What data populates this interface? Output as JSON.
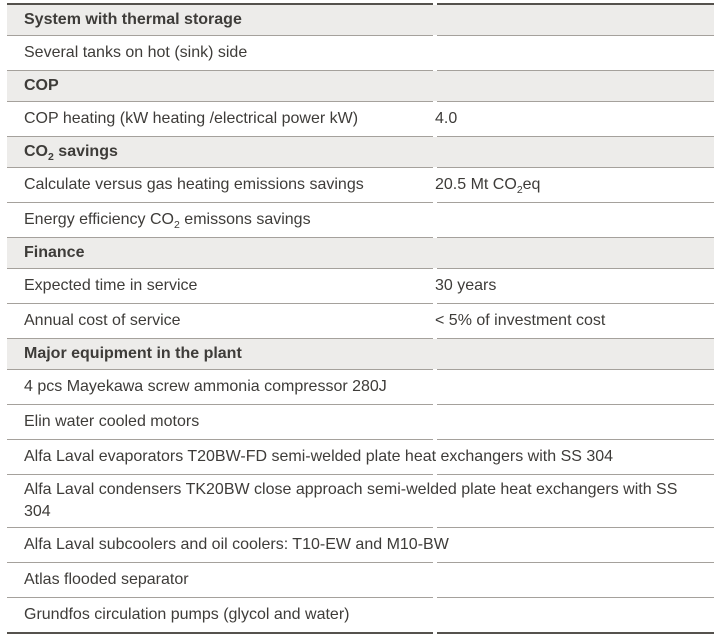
{
  "colors": {
    "text": "#3e3c39",
    "band": "#edecea",
    "line": "#a5a19c",
    "edge": "#55524d"
  },
  "rows": [
    {
      "kind": "section",
      "label": "System with thermal storage"
    },
    {
      "kind": "item",
      "label": "Several tanks on hot (sink) side"
    },
    {
      "kind": "section",
      "label": "COP"
    },
    {
      "kind": "item",
      "label": "COP heating (kW heating /electrical power kW)",
      "value": "4.0"
    },
    {
      "kind": "section",
      "label_pre": "CO",
      "label_sub": "2",
      "label_post": " savings"
    },
    {
      "kind": "item",
      "label": "Calculate versus gas heating emissions savings",
      "value_pre": "20.5 Mt CO",
      "value_sub": "2",
      "value_post": "eq"
    },
    {
      "kind": "item",
      "label_pre": "Energy efficiency CO",
      "label_sub": "2",
      "label_post": " emissons savings"
    },
    {
      "kind": "section",
      "label": "Finance"
    },
    {
      "kind": "item",
      "label": "Expected time in service",
      "value": "30 years"
    },
    {
      "kind": "item",
      "label": "Annual cost of service",
      "value": "< 5% of investment cost"
    },
    {
      "kind": "section",
      "label": "Major equipment in the plant"
    },
    {
      "kind": "item",
      "label": "4 pcs Mayekawa screw ammonia compressor 280J"
    },
    {
      "kind": "item",
      "label": "Elin water cooled motors"
    },
    {
      "kind": "item",
      "label": "Alfa Laval evaporators T20BW-FD semi-welded plate heat exchangers with SS 304"
    },
    {
      "kind": "item",
      "label": "Alfa Laval condensers TK20BW close approach semi-welded plate heat exchangers with SS 304"
    },
    {
      "kind": "item",
      "label": "Alfa Laval subcoolers and oil coolers: T10-EW and M10-BW"
    },
    {
      "kind": "item",
      "label": "Atlas flooded separator"
    },
    {
      "kind": "item",
      "label": "Grundfos circulation pumps (glycol and water)"
    }
  ]
}
